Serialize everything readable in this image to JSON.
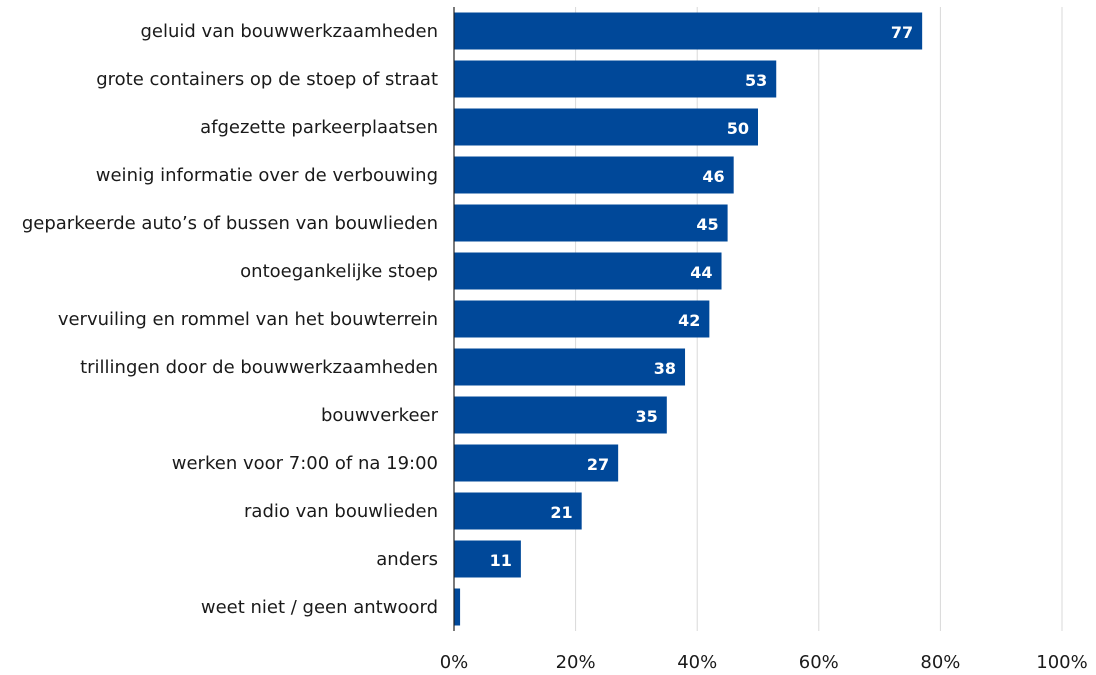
{
  "chart_data": {
    "type": "bar",
    "orientation": "horizontal",
    "categories": [
      "geluid van bouwwerkzaamheden",
      "grote containers op de stoep of straat",
      "afgezette parkeerplaatsen",
      "weinig informatie over de verbouwing",
      "geparkeerde auto’s of bussen van bouwlieden",
      "ontoegankelijke stoep",
      "vervuiling en rommel van het bouwterrein",
      "trillingen door de bouwwerkzaamheden",
      "bouwverkeer",
      "werken voor 7:00 of na 19:00",
      "radio van bouwlieden",
      "anders",
      "weet niet / geen antwoord"
    ],
    "values": [
      77,
      53,
      50,
      46,
      45,
      44,
      42,
      38,
      35,
      27,
      21,
      11,
      1
    ],
    "data_labels": [
      "77",
      "53",
      "50",
      "46",
      "45",
      "44",
      "42",
      "38",
      "35",
      "27",
      "21",
      "11",
      ""
    ],
    "xlim": [
      0,
      100
    ],
    "x_ticks": [
      0,
      20,
      40,
      60,
      80,
      100
    ],
    "x_tick_labels": [
      "0%",
      "20%",
      "40%",
      "60%",
      "80%",
      "100%"
    ],
    "title": "",
    "xlabel": "",
    "ylabel": "",
    "grid": "vertical",
    "legend": "none",
    "bar_color": "#004899",
    "data_label_color": "#ffffff"
  }
}
